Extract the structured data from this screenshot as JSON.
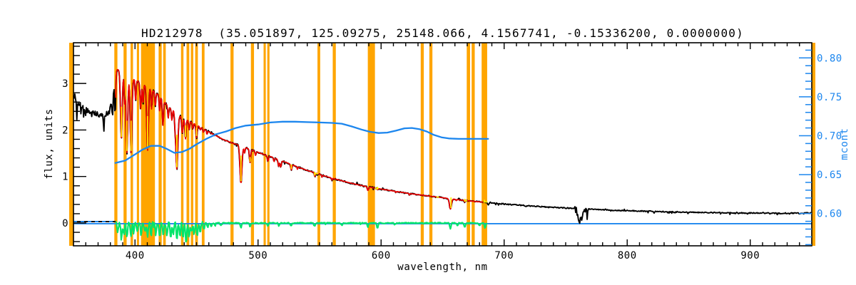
{
  "chart_data": {
    "type": "line",
    "title": "HD212978  (35.051897, 125.09275, 25148.066, 4.1567741, -0.15336200, 0.0000000)",
    "xlabel": "wavelength, nm",
    "ylabel_left": "flux, units",
    "ylabel_right": "mcont",
    "x_range": [
      350,
      950
    ],
    "x_major_ticks": [
      400,
      500,
      600,
      700,
      800,
      900
    ],
    "x_minor_step": 10,
    "y_left_range": [
      -0.49,
      3.875
    ],
    "y_left_major_ticks": [
      0,
      1,
      2,
      3
    ],
    "y_left_minor_step": 0.2,
    "y_right_range": [
      0.5585,
      0.8195
    ],
    "y_right_major_ticks": [
      0.6,
      0.65,
      0.7,
      0.75,
      0.8
    ],
    "y_right_minor_step": 0.01,
    "colors": {
      "background": "#FFFFFF",
      "axis": "#000000",
      "observed_spectrum": "#000000",
      "synthetic_fit": "#EE0000",
      "mask_band": "#FFA500",
      "continuum_mcont": "#1C86EE",
      "residual": "#00E56A",
      "line_marker": "#FFEC00"
    },
    "mask_bands_nm": [
      [
        346.5,
        350.2
      ],
      [
        383.2,
        385.7
      ],
      [
        390.7,
        393.2
      ],
      [
        396.4,
        398.4
      ],
      [
        401.5,
        403.3
      ],
      [
        404.9,
        416.2
      ],
      [
        419.2,
        421.7
      ],
      [
        422.9,
        425.0
      ],
      [
        437.4,
        439.4
      ],
      [
        441.9,
        444.1
      ],
      [
        445.4,
        447.4
      ],
      [
        448.9,
        451.1
      ],
      [
        454.3,
        456.5
      ],
      [
        477.6,
        480.1
      ],
      [
        494.2,
        496.7
      ],
      [
        504.5,
        506.3
      ],
      [
        507.5,
        509.3
      ],
      [
        548.3,
        550.5
      ],
      [
        560.7,
        563.2
      ],
      [
        589.2,
        595.0
      ],
      [
        632.2,
        634.7
      ],
      [
        639.2,
        641.7
      ],
      [
        669.6,
        672.3
      ],
      [
        673.6,
        676.1
      ],
      [
        681.7,
        686.2
      ],
      [
        950.0,
        952.9
      ]
    ],
    "spectrum_envelope": [
      [
        350,
        2.7
      ],
      [
        353,
        2.56
      ],
      [
        356,
        2.5
      ],
      [
        360,
        2.43
      ],
      [
        364,
        2.38
      ],
      [
        368,
        2.35
      ],
      [
        372,
        2.32
      ],
      [
        376,
        2.33
      ],
      [
        379,
        2.38
      ],
      [
        380.5,
        2.55
      ],
      [
        382,
        2.95
      ],
      [
        383.5,
        3.28
      ],
      [
        386,
        3.3
      ],
      [
        389,
        3.25
      ],
      [
        392,
        3.19
      ],
      [
        396,
        3.13
      ],
      [
        400,
        3.08
      ],
      [
        404,
        3.02
      ],
      [
        408,
        2.96
      ],
      [
        412,
        2.9
      ],
      [
        416,
        2.82
      ],
      [
        420,
        2.73
      ],
      [
        424,
        2.6
      ],
      [
        428,
        2.48
      ],
      [
        432,
        2.4
      ],
      [
        436,
        2.31
      ],
      [
        440,
        2.25
      ],
      [
        444,
        2.19
      ],
      [
        448,
        2.14
      ],
      [
        452,
        2.08
      ],
      [
        456,
        2.02
      ],
      [
        460,
        1.96
      ],
      [
        464,
        1.9
      ],
      [
        468,
        1.85
      ],
      [
        472,
        1.79
      ],
      [
        476,
        1.75
      ],
      [
        480,
        1.71
      ],
      [
        484,
        1.68
      ],
      [
        488,
        1.64
      ],
      [
        492,
        1.6
      ],
      [
        496,
        1.56
      ],
      [
        500,
        1.52
      ],
      [
        505,
        1.47
      ],
      [
        510,
        1.43
      ],
      [
        515,
        1.38
      ],
      [
        520,
        1.33
      ],
      [
        525,
        1.28
      ],
      [
        530,
        1.23
      ],
      [
        535,
        1.18
      ],
      [
        540,
        1.13
      ],
      [
        545,
        1.09
      ],
      [
        550,
        1.05
      ],
      [
        555,
        1.005
      ],
      [
        560,
        0.965
      ],
      [
        565,
        0.93
      ],
      [
        570,
        0.895
      ],
      [
        575,
        0.86
      ],
      [
        580,
        0.83
      ],
      [
        585,
        0.8
      ],
      [
        590,
        0.775
      ],
      [
        595,
        0.75
      ],
      [
        600,
        0.73
      ],
      [
        606,
        0.705
      ],
      [
        612,
        0.68
      ],
      [
        618,
        0.655
      ],
      [
        624,
        0.63
      ],
      [
        630,
        0.61
      ],
      [
        636,
        0.59
      ],
      [
        642,
        0.57
      ],
      [
        648,
        0.55
      ],
      [
        654,
        0.53
      ],
      [
        660,
        0.51
      ],
      [
        666,
        0.49
      ],
      [
        672,
        0.475
      ],
      [
        678,
        0.46
      ],
      [
        684,
        0.445
      ],
      [
        690,
        0.43
      ],
      [
        697,
        0.415
      ],
      [
        704,
        0.4
      ],
      [
        712,
        0.385
      ],
      [
        720,
        0.37
      ],
      [
        728,
        0.355
      ],
      [
        736,
        0.34
      ],
      [
        744,
        0.33
      ],
      [
        752,
        0.32
      ],
      [
        760,
        0.31
      ],
      [
        768,
        0.3
      ],
      [
        776,
        0.29
      ],
      [
        784,
        0.28
      ],
      [
        792,
        0.272
      ],
      [
        800,
        0.265
      ],
      [
        810,
        0.257
      ],
      [
        820,
        0.25
      ],
      [
        830,
        0.243
      ],
      [
        840,
        0.237
      ],
      [
        850,
        0.232
      ],
      [
        860,
        0.227
      ],
      [
        870,
        0.223
      ],
      [
        880,
        0.22
      ],
      [
        890,
        0.217
      ],
      [
        900,
        0.215
      ],
      [
        910,
        0.213
      ],
      [
        920,
        0.212
      ],
      [
        930,
        0.212
      ],
      [
        940,
        0.213
      ],
      [
        950,
        0.215
      ]
    ],
    "absorption_lines": [
      [
        381.8,
        2.3,
        0.5
      ],
      [
        383.8,
        2.3,
        0.5
      ],
      [
        388.9,
        1.78,
        0.7
      ],
      [
        391.5,
        2.6,
        0.4
      ],
      [
        393.4,
        1.5,
        0.7
      ],
      [
        396.8,
        1.5,
        0.7
      ],
      [
        400.5,
        2.6,
        0.4
      ],
      [
        404.6,
        2.45,
        0.5
      ],
      [
        406.5,
        2.55,
        0.4
      ],
      [
        410.2,
        1.55,
        0.7
      ],
      [
        413.5,
        2.45,
        0.4
      ],
      [
        416.5,
        2.5,
        0.4
      ],
      [
        420.0,
        2.4,
        0.4
      ],
      [
        422.7,
        2.1,
        0.5
      ],
      [
        427.0,
        2.25,
        0.4
      ],
      [
        430.0,
        2.2,
        0.4
      ],
      [
        432.5,
        2.15,
        0.4
      ],
      [
        434.0,
        1.15,
        0.8
      ],
      [
        438.5,
        1.92,
        0.5
      ],
      [
        441.0,
        1.8,
        0.5
      ],
      [
        444.0,
        2.0,
        0.4
      ],
      [
        447.0,
        2.02,
        0.4
      ],
      [
        450.0,
        1.83,
        0.5
      ],
      [
        453.0,
        2.0,
        0.4
      ],
      [
        455.5,
        1.95,
        0.4
      ],
      [
        458.5,
        1.9,
        0.3
      ],
      [
        486.1,
        0.85,
        0.8
      ],
      [
        489.0,
        1.5,
        0.4
      ],
      [
        493.5,
        1.3,
        0.5
      ],
      [
        498.0,
        1.45,
        0.4
      ],
      [
        508.0,
        1.33,
        0.5
      ],
      [
        513.0,
        1.32,
        0.4
      ],
      [
        516.7,
        1.22,
        0.5
      ],
      [
        518.4,
        1.2,
        0.5
      ],
      [
        527.0,
        1.14,
        0.5
      ],
      [
        532.0,
        1.15,
        0.3
      ],
      [
        546.2,
        1.0,
        0.4
      ],
      [
        552.0,
        0.98,
        0.3
      ],
      [
        560.0,
        0.92,
        0.3
      ],
      [
        589.2,
        0.7,
        0.5
      ],
      [
        597.0,
        0.715,
        0.3
      ],
      [
        612.0,
        0.655,
        0.3
      ],
      [
        623.0,
        0.6,
        0.3
      ],
      [
        656.3,
        0.3,
        0.8
      ],
      [
        661.0,
        0.48,
        0.3
      ],
      [
        668.0,
        0.45,
        0.3
      ],
      [
        687.2,
        0.4,
        0.5
      ],
      [
        718.0,
        0.35,
        0.4
      ],
      [
        759.5,
        0.18,
        0.4
      ],
      [
        760.6,
        0.06,
        0.5
      ],
      [
        761.8,
        0.12,
        0.4
      ],
      [
        763.0,
        0.09,
        0.5
      ],
      [
        764.3,
        0.2,
        0.4
      ],
      [
        765.5,
        0.26,
        0.3
      ],
      [
        822.0,
        0.22,
        0.4
      ],
      [
        898.0,
        0.2,
        0.3
      ],
      [
        940.0,
        0.2,
        0.3
      ]
    ],
    "fit_range_nm": [
      384.3,
      684.5
    ],
    "mcont_curve": [
      [
        384,
        0.665
      ],
      [
        392,
        0.668
      ],
      [
        400,
        0.676
      ],
      [
        406,
        0.682
      ],
      [
        413,
        0.687
      ],
      [
        420,
        0.687
      ],
      [
        426,
        0.683
      ],
      [
        432,
        0.678
      ],
      [
        438,
        0.679
      ],
      [
        444,
        0.683
      ],
      [
        450,
        0.689
      ],
      [
        458,
        0.696
      ],
      [
        466,
        0.702
      ],
      [
        474,
        0.7055
      ],
      [
        482,
        0.71
      ],
      [
        490,
        0.713
      ],
      [
        500,
        0.7145
      ],
      [
        510,
        0.717
      ],
      [
        520,
        0.718
      ],
      [
        530,
        0.718
      ],
      [
        540,
        0.7175
      ],
      [
        550,
        0.717
      ],
      [
        560,
        0.7165
      ],
      [
        568,
        0.7155
      ],
      [
        576,
        0.712
      ],
      [
        584,
        0.708
      ],
      [
        591,
        0.705
      ],
      [
        598,
        0.7035
      ],
      [
        605,
        0.704
      ],
      [
        612,
        0.7065
      ],
      [
        619,
        0.7095
      ],
      [
        625,
        0.71
      ],
      [
        631,
        0.7085
      ],
      [
        637,
        0.7055
      ],
      [
        643,
        0.701
      ],
      [
        649,
        0.698
      ],
      [
        655,
        0.6965
      ],
      [
        663,
        0.696
      ],
      [
        672,
        0.696
      ],
      [
        681,
        0.696
      ],
      [
        687,
        0.696
      ]
    ],
    "residual": {
      "range_nm": [
        384.3,
        686.5
      ],
      "spikes": [
        [
          386,
          -0.2
        ],
        [
          389,
          -0.35
        ],
        [
          391,
          -0.25
        ],
        [
          393.4,
          -0.3
        ],
        [
          396.8,
          -0.3
        ],
        [
          399,
          -0.18
        ],
        [
          402,
          -0.22
        ],
        [
          405,
          -0.28
        ],
        [
          408,
          -0.2
        ],
        [
          410.2,
          -0.3
        ],
        [
          413,
          -0.22
        ],
        [
          417,
          -0.25
        ],
        [
          420,
          -0.3
        ],
        [
          423,
          -0.25
        ],
        [
          426,
          -0.28
        ],
        [
          429,
          -0.32
        ],
        [
          431,
          -0.25
        ],
        [
          434,
          -0.38
        ],
        [
          436.5,
          -0.3
        ],
        [
          439,
          -0.28
        ],
        [
          441.5,
          -0.45
        ],
        [
          444,
          -0.3
        ],
        [
          446,
          -0.22
        ],
        [
          448,
          -0.25
        ],
        [
          450.5,
          -0.28
        ],
        [
          453,
          -0.2
        ],
        [
          456,
          -0.15
        ],
        [
          459,
          -0.1
        ],
        [
          462,
          -0.08
        ],
        [
          465,
          -0.06
        ],
        [
          470,
          -0.05
        ],
        [
          486.1,
          -0.1
        ],
        [
          493.5,
          -0.08
        ],
        [
          508,
          -0.07
        ],
        [
          517,
          -0.06
        ],
        [
          527,
          -0.05
        ],
        [
          546,
          -0.06
        ],
        [
          568,
          -0.05
        ],
        [
          589.2,
          -0.09
        ],
        [
          597,
          -0.12
        ],
        [
          611,
          -0.04
        ],
        [
          656.3,
          -0.12
        ],
        [
          662,
          -0.05
        ],
        [
          668,
          -0.09
        ],
        [
          680,
          -0.06
        ],
        [
          684.5,
          -0.12
        ]
      ]
    },
    "zero_line": {
      "flux": -0.015,
      "dashed_segment_nm": [
        350,
        384.3
      ],
      "dashed_segment_flux": 0.03
    },
    "yellow_marks_vertical": [
      [
        389,
        1.85,
        2.5
      ],
      [
        393.4,
        1.55,
        2.2
      ],
      [
        396.8,
        1.55,
        2.2
      ],
      [
        410.2,
        1.6,
        2.3
      ],
      [
        434,
        1.2,
        1.9
      ],
      [
        441,
        1.85,
        2.1
      ],
      [
        450,
        1.87,
        2.05
      ],
      [
        486.1,
        0.9,
        1.45
      ],
      [
        493.5,
        1.32,
        1.42
      ],
      [
        527,
        1.16,
        1.26
      ],
      [
        546,
        1.02,
        1.1
      ],
      [
        597,
        0.72,
        0.78
      ],
      [
        656.8,
        0.32,
        0.55
      ],
      [
        668,
        0.46,
        0.52
      ],
      [
        684,
        0.44,
        0.5
      ]
    ],
    "yellow_marks_horizontal": [
      [
        546,
        549,
        1.06
      ],
      [
        595,
        598,
        0.745
      ],
      [
        645,
        647,
        0.558
      ],
      [
        667.5,
        670,
        0.478
      ],
      [
        683,
        686.5,
        0.452
      ]
    ]
  }
}
